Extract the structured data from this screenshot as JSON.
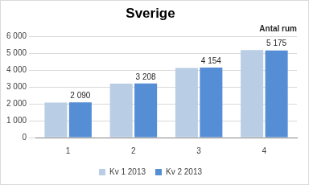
{
  "chart_data": {
    "type": "bar",
    "title": "Sverige",
    "annotation": "Antal rum",
    "categories": [
      "1",
      "2",
      "3",
      "4"
    ],
    "series": [
      {
        "name": "Kv 1 2013",
        "color": "#b9cde5",
        "values": [
          2080,
          3200,
          4130,
          5200
        ]
      },
      {
        "name": "Kv 2 2013",
        "color": "#558ed5",
        "values": [
          2090,
          3208,
          4154,
          5175
        ],
        "data_labels": true,
        "value_labels": [
          "2 090",
          "3 208",
          "4 154",
          "5 175"
        ]
      }
    ],
    "ylim": [
      0,
      6000
    ],
    "yticks": [
      0,
      {
        "value": 1000,
        "label": "1 000"
      },
      {
        "value": 2000,
        "label": "2 000"
      },
      {
        "value": 3000,
        "label": "3 000"
      },
      {
        "value": 4000,
        "label": "4 000"
      },
      {
        "value": 5000,
        "label": "5 000"
      },
      {
        "value": 6000,
        "label": "6 000"
      }
    ],
    "grid": true,
    "legend": "bottom"
  }
}
